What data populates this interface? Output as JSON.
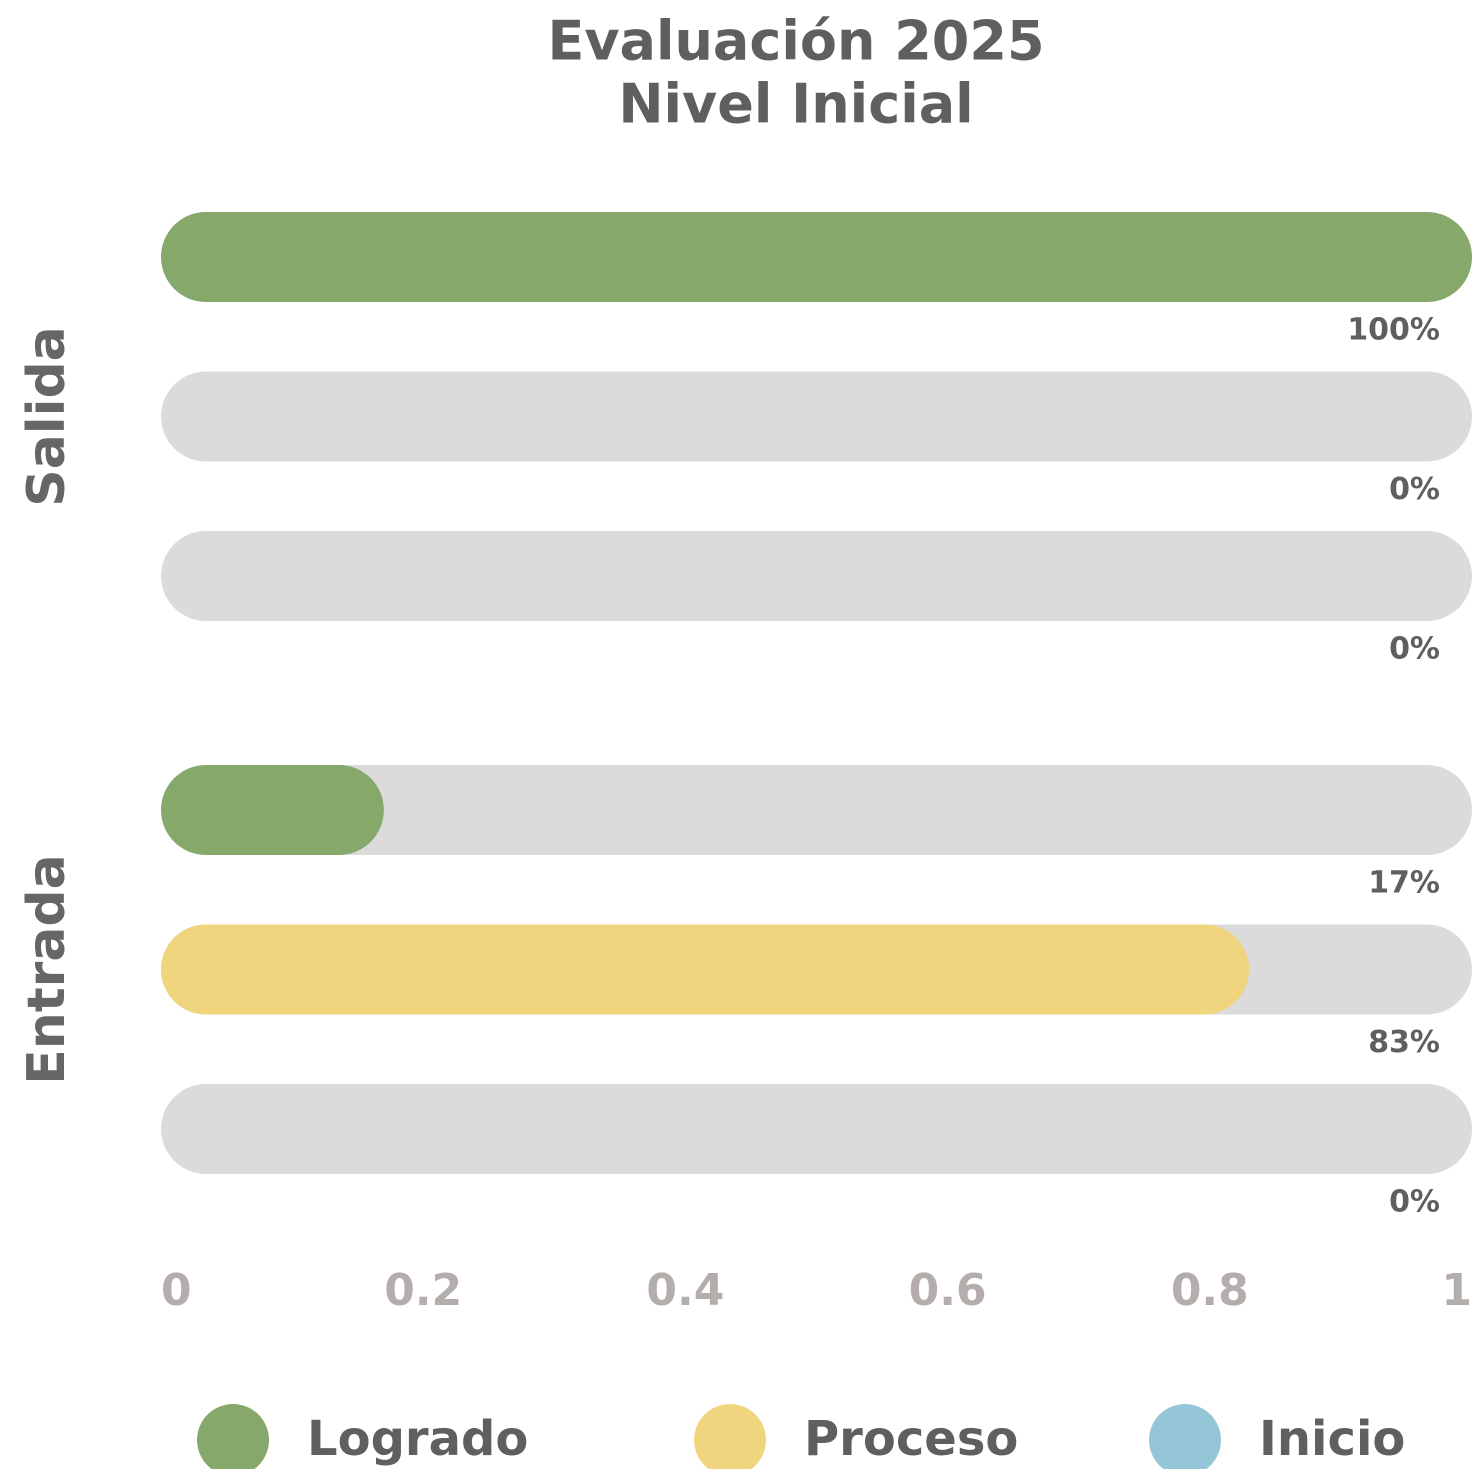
{
  "chart_data": {
    "type": "bar",
    "orientation": "horizontal",
    "title": [
      "Evaluación 2025",
      "Nivel Inicial"
    ],
    "categories": [
      "Salida",
      "Entrada"
    ],
    "series": [
      {
        "name": "Logrado",
        "color": "#86a86b",
        "values": [
          1,
          0.17
        ],
        "value_labels": [
          "100%",
          "17%"
        ]
      },
      {
        "name": "Proceso",
        "color": "#f0d57e",
        "values": [
          0,
          0.83
        ],
        "value_labels": [
          "0%",
          "83%"
        ]
      },
      {
        "name": "Inicio",
        "color": "#94c6d8",
        "values": [
          0,
          0
        ],
        "value_labels": [
          "0%",
          "0%"
        ]
      }
    ],
    "xlim": [
      0,
      1
    ],
    "xticks": [
      0,
      0.2,
      0.4,
      0.6,
      0.8,
      1
    ],
    "grid": false,
    "legend": "bottom"
  }
}
